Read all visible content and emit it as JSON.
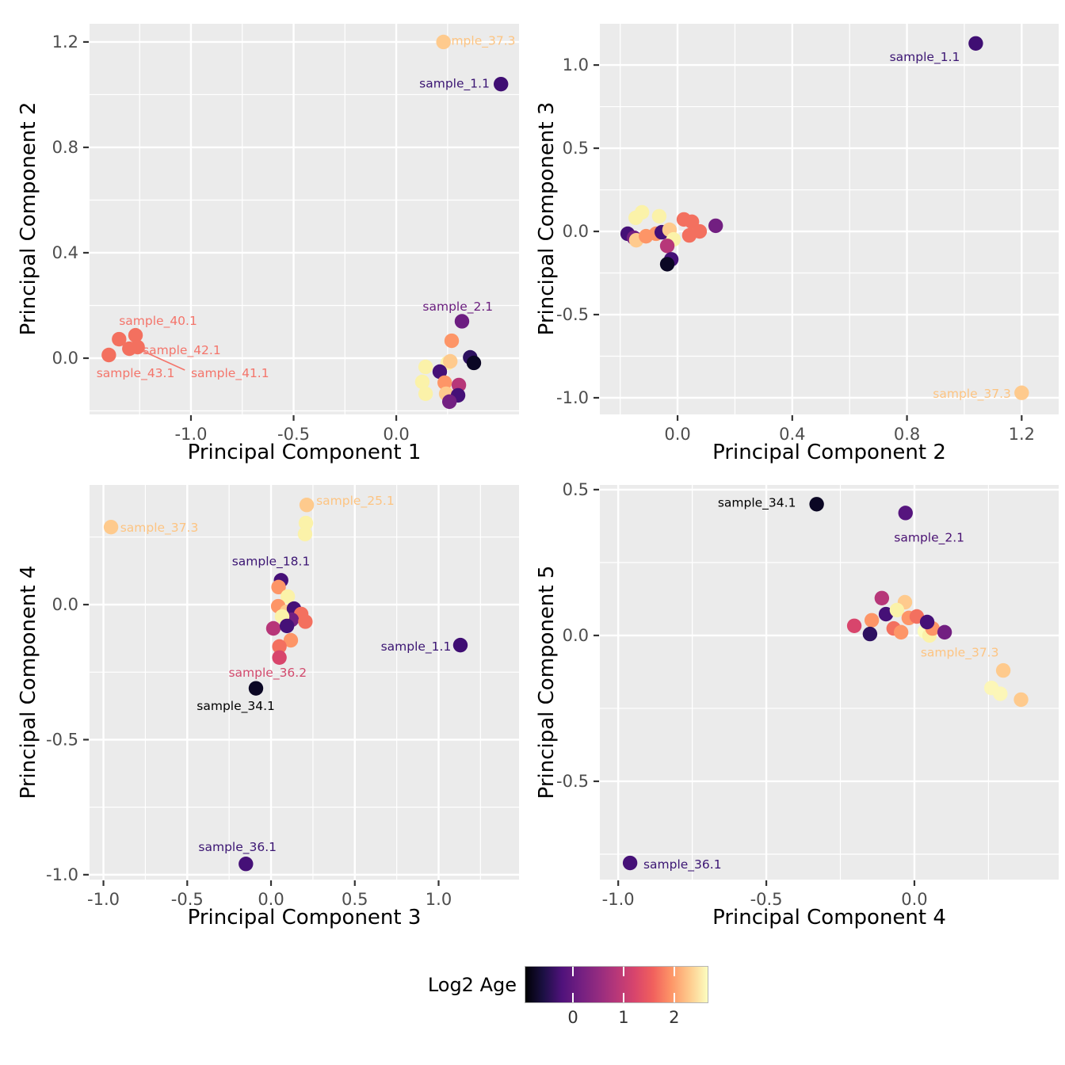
{
  "figure": {
    "description": "PCA pairwise scatter plots colored by Log2 Age"
  },
  "style": {
    "panel_bg": "#ebebeb",
    "grid_color": "#ffffff",
    "tick_label_color": "#4d4d4d",
    "tick_mark_color": "#333333",
    "axis_title_color": "#000000"
  },
  "legend": {
    "title": "Log2 Age",
    "bar_range": [
      -0.94,
      2.66
    ],
    "ticks": [
      {
        "v": 0,
        "label": "0"
      },
      {
        "v": 1,
        "label": "1"
      },
      {
        "v": 2,
        "label": "2"
      }
    ],
    "gradient": [
      {
        "t": 0.0,
        "c": "#000004"
      },
      {
        "t": 0.1,
        "c": "#1c1044"
      },
      {
        "t": 0.2,
        "c": "#4f127b"
      },
      {
        "t": 0.3,
        "c": "#721f81"
      },
      {
        "t": 0.4,
        "c": "#932b80"
      },
      {
        "t": 0.5,
        "c": "#b73779"
      },
      {
        "t": 0.6,
        "c": "#d8456c"
      },
      {
        "t": 0.7,
        "c": "#f1605d"
      },
      {
        "t": 0.8,
        "c": "#fd9567"
      },
      {
        "t": 0.9,
        "c": "#feca8d"
      },
      {
        "t": 1.0,
        "c": "#fcfdbf"
      }
    ]
  },
  "chart_data": [
    {
      "type": "scatter",
      "xlabel": "Principal Component 1",
      "ylabel": "Principal Component 2",
      "xlim": [
        -1.494,
        0.598
      ],
      "ylim": [
        -0.2135,
        1.269
      ],
      "x_ticks": [
        {
          "v": -1.0,
          "label": "-1.0"
        },
        {
          "v": -0.5,
          "label": "-0.5"
        },
        {
          "v": 0.0,
          "label": "0.0"
        }
      ],
      "y_ticks": [
        {
          "v": 0.0,
          "label": "0.0"
        },
        {
          "v": 0.4,
          "label": "0.4"
        },
        {
          "v": 0.8,
          "label": "0.8"
        },
        {
          "v": 1.2,
          "label": "1.2"
        }
      ],
      "points": [
        {
          "x": 0.23,
          "y": 1.2,
          "c": "#feca8d"
        },
        {
          "x": 0.51,
          "y": 1.04,
          "c": "#3f0e73"
        },
        {
          "x": 0.32,
          "y": 0.14,
          "c": "#6c1d81"
        },
        {
          "x": -1.27,
          "y": 0.087,
          "c": "#f3705f"
        },
        {
          "x": -1.35,
          "y": 0.072,
          "c": "#f3705f"
        },
        {
          "x": -1.26,
          "y": 0.042,
          "c": "#f3705f"
        },
        {
          "x": -1.3,
          "y": 0.036,
          "c": "#f3705f"
        },
        {
          "x": -1.4,
          "y": 0.012,
          "c": "#f3705f"
        },
        {
          "x": 0.27,
          "y": 0.066,
          "c": "#fd9567"
        },
        {
          "x": 0.251,
          "y": -0.018,
          "c": "#fbf2a9"
        },
        {
          "x": 0.263,
          "y": -0.012,
          "c": "#feca8d"
        },
        {
          "x": 0.36,
          "y": 0.003,
          "c": "#2d1160"
        },
        {
          "x": 0.378,
          "y": -0.018,
          "c": "#0b0724"
        },
        {
          "x": 0.143,
          "y": -0.033,
          "c": "#fbf2a9"
        },
        {
          "x": 0.212,
          "y": -0.051,
          "c": "#451077"
        },
        {
          "x": 0.127,
          "y": -0.09,
          "c": "#fbf2a9"
        },
        {
          "x": 0.236,
          "y": -0.093,
          "c": "#fd9567"
        },
        {
          "x": 0.305,
          "y": -0.102,
          "c": "#b73779"
        },
        {
          "x": 0.143,
          "y": -0.135,
          "c": "#fbf2a9"
        },
        {
          "x": 0.243,
          "y": -0.135,
          "c": "#feca8d"
        },
        {
          "x": 0.301,
          "y": -0.141,
          "c": "#451077"
        },
        {
          "x": 0.259,
          "y": -0.165,
          "c": "#721f81"
        }
      ],
      "labels": [
        {
          "text": "sample_37.3",
          "x": 0.2,
          "y": 1.205,
          "color": "#fdc482",
          "anchor": "s"
        },
        {
          "text": "sample_1.1",
          "x": 0.455,
          "y": 1.042,
          "color": "#3b1573",
          "anchor": "e"
        },
        {
          "text": "sample_2.1",
          "x": 0.3,
          "y": 0.195,
          "color": "#6a1d7e",
          "anchor": "m"
        },
        {
          "text": "sample_40.1",
          "x": -1.16,
          "y": 0.141,
          "color": "#f4756b",
          "anchor": "m"
        },
        {
          "text": "sample_42.1",
          "x": -1.235,
          "y": 0.03,
          "color": "#f4756b",
          "anchor": "s"
        },
        {
          "text": "sample_43.1",
          "x": -1.27,
          "y": -0.057,
          "color": "#f4756b",
          "anchor": "m"
        },
        {
          "text": "sample_41.1",
          "x": -1.0,
          "y": -0.057,
          "color": "#f4756b",
          "anchor": "s"
        }
      ],
      "segments": [
        {
          "x1": -1.26,
          "y1": 0.036,
          "x2": -1.03,
          "y2": -0.045,
          "color": "#f4756b"
        }
      ]
    },
    {
      "type": "scatter",
      "xlabel": "Principal Component 2",
      "ylabel": "Principal Component 3",
      "xlim": [
        -0.271,
        1.329
      ],
      "ylim": [
        -1.1,
        1.248
      ],
      "x_ticks": [
        {
          "v": 0.0,
          "label": "0.0"
        },
        {
          "v": 0.4,
          "label": "0.4"
        },
        {
          "v": 0.8,
          "label": "0.8"
        },
        {
          "v": 1.2,
          "label": "1.2"
        }
      ],
      "y_ticks": [
        {
          "v": -1.0,
          "label": "-1.0"
        },
        {
          "v": -0.5,
          "label": "-0.5"
        },
        {
          "v": 0.0,
          "label": "0.0"
        },
        {
          "v": 0.5,
          "label": "0.5"
        },
        {
          "v": 1.0,
          "label": "1.0"
        }
      ],
      "points": [
        {
          "x": -0.124,
          "y": 0.115,
          "c": "#fbf2a9"
        },
        {
          "x": -0.146,
          "y": 0.082,
          "c": "#fbf2a9"
        },
        {
          "x": -0.064,
          "y": 0.091,
          "c": "#fbf2a9"
        },
        {
          "x": 0.133,
          "y": 0.034,
          "c": "#721f81"
        },
        {
          "x": 0.022,
          "y": 0.072,
          "c": "#f3705f"
        },
        {
          "x": 0.05,
          "y": 0.058,
          "c": "#f3705f"
        },
        {
          "x": 0.077,
          "y": 0.0,
          "c": "#f3705f"
        },
        {
          "x": 0.041,
          "y": -0.024,
          "c": "#f3705f"
        },
        {
          "x": -0.174,
          "y": -0.014,
          "c": "#451077"
        },
        {
          "x": -0.152,
          "y": -0.038,
          "c": "#721f81"
        },
        {
          "x": -0.144,
          "y": -0.053,
          "c": "#feca8d"
        },
        {
          "x": -0.11,
          "y": -0.029,
          "c": "#fd9567"
        },
        {
          "x": -0.075,
          "y": -0.014,
          "c": "#fd9567"
        },
        {
          "x": -0.055,
          "y": -0.005,
          "c": "#451077"
        },
        {
          "x": -0.028,
          "y": 0.01,
          "c": "#feca8d"
        },
        {
          "x": -0.014,
          "y": -0.048,
          "c": "#fbf2a9"
        },
        {
          "x": -0.036,
          "y": -0.087,
          "c": "#b73779"
        },
        {
          "x": -0.022,
          "y": -0.168,
          "c": "#451077"
        },
        {
          "x": -0.036,
          "y": -0.197,
          "c": "#0b0724"
        },
        {
          "x": 1.04,
          "y": 1.13,
          "c": "#3f0e73"
        },
        {
          "x": 1.2,
          "y": -0.97,
          "c": "#feca8d"
        }
      ],
      "labels": [
        {
          "text": "sample_1.1",
          "x": 0.862,
          "y": 1.048,
          "color": "#3b1573",
          "anchor": "m"
        },
        {
          "text": "sample_37.3",
          "x": 1.163,
          "y": -0.975,
          "color": "#fdc482",
          "anchor": "e"
        }
      ],
      "segments": []
    },
    {
      "type": "scatter",
      "xlabel": "Principal Component 3",
      "ylabel": "Principal Component 4",
      "xlim": [
        -1.083,
        1.48
      ],
      "ylim": [
        -1.018,
        0.443
      ],
      "x_ticks": [
        {
          "v": -1.0,
          "label": "-1.0"
        },
        {
          "v": -0.5,
          "label": "-0.5"
        },
        {
          "v": 0.0,
          "label": "0.0"
        },
        {
          "v": 0.5,
          "label": "0.5"
        },
        {
          "v": 1.0,
          "label": "1.0"
        }
      ],
      "y_ticks": [
        {
          "v": -1.0,
          "label": "-1.0"
        },
        {
          "v": -0.5,
          "label": "-0.5"
        },
        {
          "v": 0.0,
          "label": "0.0"
        }
      ],
      "points": [
        {
          "x": -0.955,
          "y": 0.287,
          "c": "#feca8d"
        },
        {
          "x": 0.213,
          "y": 0.369,
          "c": "#feca8d"
        },
        {
          "x": 0.208,
          "y": 0.302,
          "c": "#fbf2a9"
        },
        {
          "x": 0.203,
          "y": 0.261,
          "c": "#fbf2a9"
        },
        {
          "x": 0.06,
          "y": 0.09,
          "c": "#451077"
        },
        {
          "x": 0.045,
          "y": 0.065,
          "c": "#fd9567"
        },
        {
          "x": 0.1,
          "y": 0.03,
          "c": "#fbf2a9"
        },
        {
          "x": 0.043,
          "y": -0.006,
          "c": "#fd9567"
        },
        {
          "x": 0.095,
          "y": -0.026,
          "c": "#feca8d"
        },
        {
          "x": 0.137,
          "y": -0.015,
          "c": "#451077"
        },
        {
          "x": 0.18,
          "y": -0.035,
          "c": "#f3705f"
        },
        {
          "x": 0.123,
          "y": -0.056,
          "c": "#721f81"
        },
        {
          "x": 0.066,
          "y": -0.044,
          "c": "#fbf2a9"
        },
        {
          "x": 0.014,
          "y": -0.088,
          "c": "#b73779"
        },
        {
          "x": 0.095,
          "y": -0.079,
          "c": "#451077"
        },
        {
          "x": 0.205,
          "y": -0.063,
          "c": "#f3705f"
        },
        {
          "x": 0.118,
          "y": -0.132,
          "c": "#fd9567"
        },
        {
          "x": 0.05,
          "y": -0.155,
          "c": "#f3705f"
        },
        {
          "x": 0.05,
          "y": -0.196,
          "c": "#d8456c"
        },
        {
          "x": -0.09,
          "y": -0.31,
          "c": "#0b0724"
        },
        {
          "x": 1.13,
          "y": -0.15,
          "c": "#3f0e73"
        },
        {
          "x": -0.15,
          "y": -0.96,
          "c": "#451077"
        }
      ],
      "labels": [
        {
          "text": "sample_37.3",
          "x": -0.9,
          "y": 0.285,
          "color": "#fdc482",
          "anchor": "s"
        },
        {
          "text": "sample_25.1",
          "x": 0.27,
          "y": 0.385,
          "color": "#fdc482",
          "anchor": "s"
        },
        {
          "text": "sample_18.1",
          "x": 0.0,
          "y": 0.16,
          "color": "#3b1573",
          "anchor": "m"
        },
        {
          "text": "sample_36.2",
          "x": -0.02,
          "y": -0.253,
          "color": "#d24a6d",
          "anchor": "m"
        },
        {
          "text": "sample_34.1",
          "x": -0.21,
          "y": -0.375,
          "color": "#000000",
          "anchor": "m"
        },
        {
          "text": "sample_1.1",
          "x": 1.075,
          "y": -0.155,
          "color": "#3b1573",
          "anchor": "e"
        },
        {
          "text": "sample_36.1",
          "x": -0.2,
          "y": -0.898,
          "color": "#3b1573",
          "anchor": "m"
        }
      ],
      "segments": []
    },
    {
      "type": "scatter",
      "xlabel": "Principal Component 4",
      "ylabel": "Principal Component 5",
      "xlim": [
        -1.062,
        0.487
      ],
      "ylim": [
        -0.837,
        0.516
      ],
      "x_ticks": [
        {
          "v": -1.0,
          "label": "-1.0"
        },
        {
          "v": -0.5,
          "label": "-0.5"
        },
        {
          "v": 0.0,
          "label": "0.0"
        }
      ],
      "y_ticks": [
        {
          "v": -0.5,
          "label": "-0.5"
        },
        {
          "v": 0.0,
          "label": "0.0"
        },
        {
          "v": 0.5,
          "label": "0.5"
        }
      ],
      "points": [
        {
          "x": -0.203,
          "y": 0.033,
          "c": "#d8456c"
        },
        {
          "x": -0.11,
          "y": 0.128,
          "c": "#b73779"
        },
        {
          "x": -0.144,
          "y": 0.052,
          "c": "#fd9567"
        },
        {
          "x": -0.15,
          "y": 0.005,
          "c": "#2d1160"
        },
        {
          "x": -0.096,
          "y": 0.073,
          "c": "#451077"
        },
        {
          "x": -0.032,
          "y": 0.114,
          "c": "#feca8d"
        },
        {
          "x": -0.059,
          "y": 0.087,
          "c": "#fbf2a9"
        },
        {
          "x": -0.07,
          "y": 0.024,
          "c": "#f3705f"
        },
        {
          "x": -0.019,
          "y": 0.06,
          "c": "#fd9567"
        },
        {
          "x": 0.008,
          "y": 0.065,
          "c": "#f3705f"
        },
        {
          "x": -0.045,
          "y": 0.011,
          "c": "#fd9567"
        },
        {
          "x": 0.035,
          "y": 0.014,
          "c": "#fcfdbf"
        },
        {
          "x": 0.051,
          "y": 0.0,
          "c": "#fbf2a9"
        },
        {
          "x": 0.061,
          "y": 0.024,
          "c": "#fd9567"
        },
        {
          "x": 0.043,
          "y": 0.046,
          "c": "#451077"
        },
        {
          "x": 0.102,
          "y": 0.011,
          "c": "#721f81"
        },
        {
          "x": -0.33,
          "y": 0.45,
          "c": "#0b0724"
        },
        {
          "x": -0.03,
          "y": 0.42,
          "c": "#56157e"
        },
        {
          "x": 0.3,
          "y": -0.12,
          "c": "#feca8d"
        },
        {
          "x": 0.26,
          "y": -0.18,
          "c": "#fcf6b8"
        },
        {
          "x": 0.29,
          "y": -0.2,
          "c": "#fcf6b8"
        },
        {
          "x": 0.36,
          "y": -0.22,
          "c": "#feca8d"
        },
        {
          "x": -0.96,
          "y": -0.78,
          "c": "#451077"
        }
      ],
      "labels": [
        {
          "text": "sample_34.1",
          "x": -0.4,
          "y": 0.455,
          "color": "#000000",
          "anchor": "e"
        },
        {
          "text": "sample_2.1",
          "x": 0.05,
          "y": 0.335,
          "color": "#4a1273",
          "anchor": "m"
        },
        {
          "text": "sample_37.3",
          "x": 0.285,
          "y": -0.058,
          "color": "#fdc482",
          "anchor": "e"
        },
        {
          "text": "sample_36.1",
          "x": -0.915,
          "y": -0.785,
          "color": "#3b1573",
          "anchor": "s"
        }
      ],
      "segments": []
    }
  ]
}
